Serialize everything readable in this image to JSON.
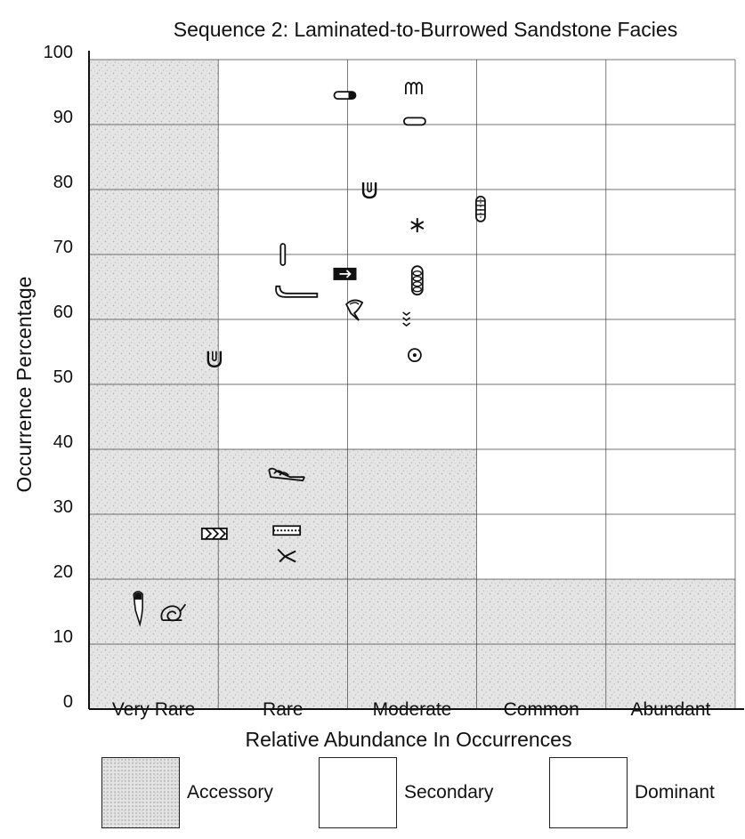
{
  "chart_data": {
    "type": "scatter",
    "title": "Sequence 2: Laminated-to-Burrowed Sandstone Facies",
    "xlabel": "Relative Abundance In Occurrences",
    "ylabel": "Occurrence Percentage",
    "x_categories": [
      "Very Rare",
      "Rare",
      "Moderate",
      "Common",
      "Abundant"
    ],
    "y_ticks": [
      "0",
      "10",
      "20",
      "30",
      "40",
      "50",
      "60",
      "70",
      "80",
      "90",
      "100"
    ],
    "ylim": [
      0,
      100
    ],
    "grid": true,
    "zones": {
      "accessory": [
        {
          "x_from": 0,
          "x_to": 1,
          "y_from": 0,
          "y_to": 100
        },
        {
          "x_from": 1,
          "x_to": 3,
          "y_from": 0,
          "y_to": 40
        },
        {
          "x_from": 3,
          "x_to": 5,
          "y_from": 0,
          "y_to": 20
        }
      ]
    },
    "points": [
      {
        "icon": "long-tube-trace",
        "x": 0.38,
        "y": 15.5
      },
      {
        "icon": "spiral-coil-trace",
        "x": 0.65,
        "y": 14.5
      },
      {
        "icon": "chevron-band-trace",
        "x": 0.97,
        "y": 27
      },
      {
        "icon": "u-burrow-trace",
        "x": 0.97,
        "y": 54
      },
      {
        "icon": "branching-trace",
        "x": 1.53,
        "y": 23.5
      },
      {
        "icon": "striped-bar-trace",
        "x": 1.53,
        "y": 27.5
      },
      {
        "icon": "clustered-tubes-trace",
        "x": 1.53,
        "y": 36
      },
      {
        "icon": "hook-tube-trace",
        "x": 1.6,
        "y": 64
      },
      {
        "icon": "vertical-shaft-trace",
        "x": 1.5,
        "y": 70
      },
      {
        "icon": "funnel-trace",
        "x": 2.06,
        "y": 61.5
      },
      {
        "icon": "dark-box-trace",
        "x": 1.98,
        "y": 67
      },
      {
        "icon": "u-burrow-trace",
        "x": 2.17,
        "y": 80
      },
      {
        "icon": "capsule-dark-tip-trace",
        "x": 1.98,
        "y": 94.5
      },
      {
        "icon": "chevron-stack-trace",
        "x": 2.47,
        "y": 60
      },
      {
        "icon": "ringed-circle-trace",
        "x": 2.52,
        "y": 54.5
      },
      {
        "icon": "stacked-rings-trace",
        "x": 2.54,
        "y": 66
      },
      {
        "icon": "star-trace",
        "x": 2.54,
        "y": 74.5
      },
      {
        "icon": "capsule-trace",
        "x": 2.52,
        "y": 90.5
      },
      {
        "icon": "wavy-trail-trace",
        "x": 2.52,
        "y": 95.5
      },
      {
        "icon": "segmented-tube-trace",
        "x": 3.03,
        "y": 77
      }
    ]
  },
  "legend": {
    "accessory": "Accessory",
    "secondary": "Secondary",
    "dominant": "Dominant"
  }
}
